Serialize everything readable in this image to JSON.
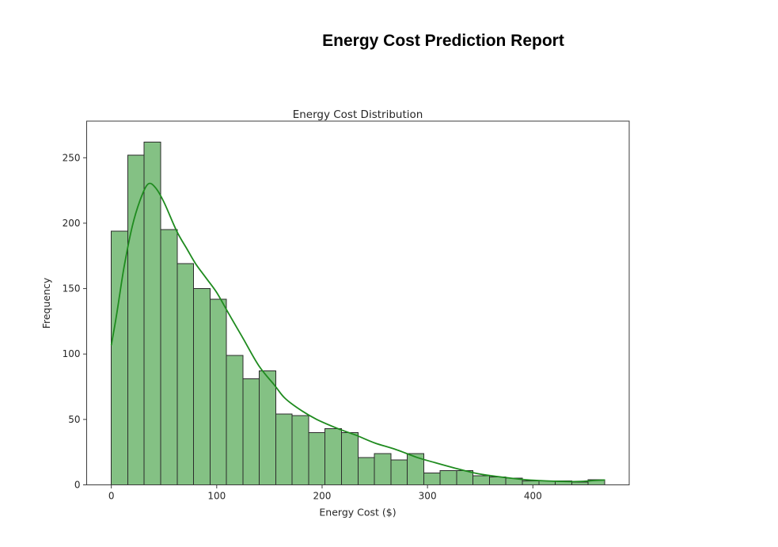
{
  "report": {
    "title": "Energy Cost Prediction Report"
  },
  "chart_data": {
    "type": "histogram",
    "title": "Energy Cost Distribution",
    "xlabel": "Energy Cost ($)",
    "ylabel": "Frequency",
    "x_ticks": [
      0,
      100,
      200,
      300,
      400
    ],
    "y_ticks": [
      0,
      50,
      100,
      150,
      200,
      250
    ],
    "xlim": [
      -23.4,
      491.4
    ],
    "ylim": [
      0,
      278
    ],
    "grid": false,
    "legend": "none",
    "bins": {
      "start": 0,
      "width": 15.6,
      "count": 30
    },
    "frequencies": [
      194,
      252,
      262,
      195,
      169,
      150,
      142,
      99,
      81,
      87,
      54,
      53,
      40,
      43,
      40,
      21,
      24,
      19,
      24,
      9,
      11,
      11,
      7,
      6,
      5,
      3,
      3,
      3,
      2,
      4
    ],
    "kde_overlay": {
      "name": "kde-density-curve",
      "points": [
        [
          0,
          107
        ],
        [
          5,
          130
        ],
        [
          12,
          166
        ],
        [
          20,
          198
        ],
        [
          28,
          219
        ],
        [
          35,
          230
        ],
        [
          42,
          227
        ],
        [
          50,
          216
        ],
        [
          62,
          194
        ],
        [
          72,
          180
        ],
        [
          80,
          169
        ],
        [
          90,
          158
        ],
        [
          100,
          147
        ],
        [
          112,
          130
        ],
        [
          125,
          112
        ],
        [
          140,
          91
        ],
        [
          155,
          76
        ],
        [
          165,
          66
        ],
        [
          180,
          57
        ],
        [
          195,
          50
        ],
        [
          215,
          43
        ],
        [
          232,
          38
        ],
        [
          250,
          32
        ],
        [
          270,
          27
        ],
        [
          290,
          21
        ],
        [
          307,
          17
        ],
        [
          325,
          13
        ],
        [
          345,
          9
        ],
        [
          360,
          7
        ],
        [
          375,
          5.5
        ],
        [
          390,
          4.2
        ],
        [
          405,
          3.3
        ],
        [
          420,
          2.8
        ],
        [
          435,
          2.5
        ],
        [
          448,
          2.7
        ],
        [
          458,
          3.3
        ],
        [
          468,
          3.7
        ]
      ]
    },
    "colors": {
      "bar_fill": "#84c184",
      "bar_edge": "#2b2b2b",
      "kde_line": "#1f8b1f",
      "axis": "#3c3c3c",
      "tick_text": "#262626",
      "title_text": "#000000"
    }
  }
}
